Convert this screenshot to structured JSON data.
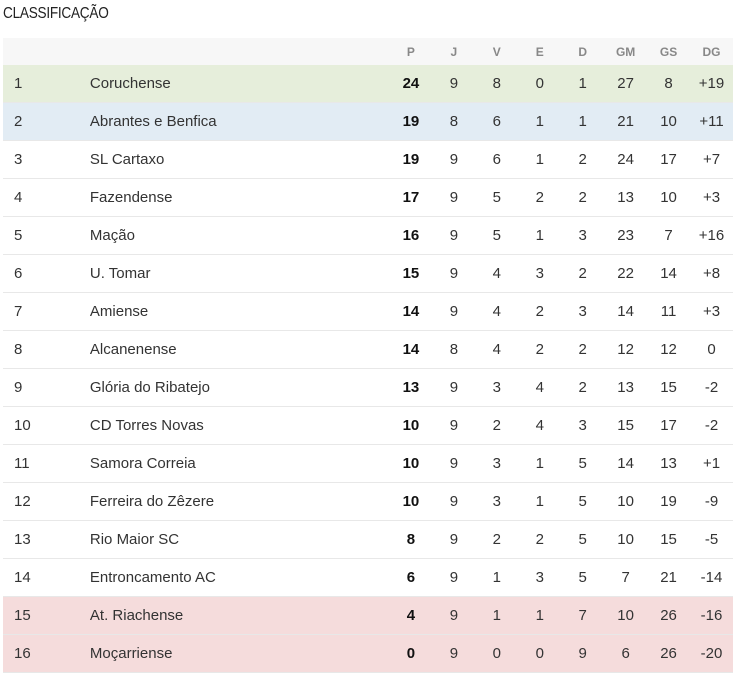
{
  "title": "CLASSIFICAÇÃO",
  "headers": [
    "P",
    "J",
    "V",
    "E",
    "D",
    "GM",
    "GS",
    "DG"
  ],
  "colors": {
    "champion": "#e6eedb",
    "second": "#e2ecf4",
    "relegation": "#f5dcdc"
  },
  "rows": [
    {
      "pos": "1",
      "team": "Coruchense",
      "p": "24",
      "j": "9",
      "v": "8",
      "e": "0",
      "d": "1",
      "gm": "27",
      "gs": "8",
      "dg": "+19",
      "zone": "g"
    },
    {
      "pos": "2",
      "team": "Abrantes e Benfica",
      "p": "19",
      "j": "8",
      "v": "6",
      "e": "1",
      "d": "1",
      "gm": "21",
      "gs": "10",
      "dg": "+11",
      "zone": "b"
    },
    {
      "pos": "3",
      "team": "SL Cartaxo",
      "p": "19",
      "j": "9",
      "v": "6",
      "e": "1",
      "d": "2",
      "gm": "24",
      "gs": "17",
      "dg": "+7",
      "zone": ""
    },
    {
      "pos": "4",
      "team": "Fazendense",
      "p": "17",
      "j": "9",
      "v": "5",
      "e": "2",
      "d": "2",
      "gm": "13",
      "gs": "10",
      "dg": "+3",
      "zone": ""
    },
    {
      "pos": "5",
      "team": "Mação",
      "p": "16",
      "j": "9",
      "v": "5",
      "e": "1",
      "d": "3",
      "gm": "23",
      "gs": "7",
      "dg": "+16",
      "zone": ""
    },
    {
      "pos": "6",
      "team": "U. Tomar",
      "p": "15",
      "j": "9",
      "v": "4",
      "e": "3",
      "d": "2",
      "gm": "22",
      "gs": "14",
      "dg": "+8",
      "zone": ""
    },
    {
      "pos": "7",
      "team": "Amiense",
      "p": "14",
      "j": "9",
      "v": "4",
      "e": "2",
      "d": "3",
      "gm": "14",
      "gs": "11",
      "dg": "+3",
      "zone": ""
    },
    {
      "pos": "8",
      "team": "Alcanenense",
      "p": "14",
      "j": "8",
      "v": "4",
      "e": "2",
      "d": "2",
      "gm": "12",
      "gs": "12",
      "dg": "0",
      "zone": ""
    },
    {
      "pos": "9",
      "team": "Glória do Ribatejo",
      "p": "13",
      "j": "9",
      "v": "3",
      "e": "4",
      "d": "2",
      "gm": "13",
      "gs": "15",
      "dg": "-2",
      "zone": ""
    },
    {
      "pos": "10",
      "team": "CD Torres Novas",
      "p": "10",
      "j": "9",
      "v": "2",
      "e": "4",
      "d": "3",
      "gm": "15",
      "gs": "17",
      "dg": "-2",
      "zone": ""
    },
    {
      "pos": "11",
      "team": "Samora Correia",
      "p": "10",
      "j": "9",
      "v": "3",
      "e": "1",
      "d": "5",
      "gm": "14",
      "gs": "13",
      "dg": "+1",
      "zone": ""
    },
    {
      "pos": "12",
      "team": "Ferreira do Zêzere",
      "p": "10",
      "j": "9",
      "v": "3",
      "e": "1",
      "d": "5",
      "gm": "10",
      "gs": "19",
      "dg": "-9",
      "zone": ""
    },
    {
      "pos": "13",
      "team": "Rio Maior SC",
      "p": "8",
      "j": "9",
      "v": "2",
      "e": "2",
      "d": "5",
      "gm": "10",
      "gs": "15",
      "dg": "-5",
      "zone": ""
    },
    {
      "pos": "14",
      "team": "Entroncamento AC",
      "p": "6",
      "j": "9",
      "v": "1",
      "e": "3",
      "d": "5",
      "gm": "7",
      "gs": "21",
      "dg": "-14",
      "zone": ""
    },
    {
      "pos": "15",
      "team": "At. Riachense",
      "p": "4",
      "j": "9",
      "v": "1",
      "e": "1",
      "d": "7",
      "gm": "10",
      "gs": "26",
      "dg": "-16",
      "zone": "r"
    },
    {
      "pos": "16",
      "team": "Moçarriense",
      "p": "0",
      "j": "9",
      "v": "0",
      "e": "0",
      "d": "9",
      "gm": "6",
      "gs": "26",
      "dg": "-20",
      "zone": "r"
    }
  ]
}
